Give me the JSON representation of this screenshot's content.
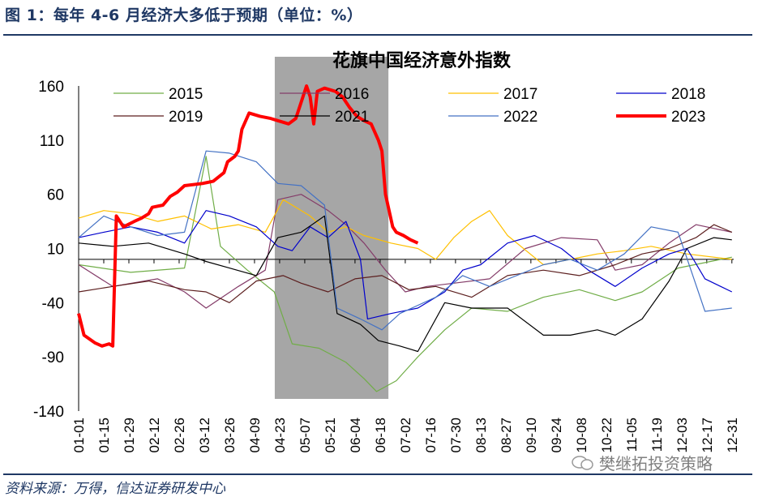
{
  "header": {
    "figure_title": "图 1：每年 4-6 月经济大多低于预期（单位：%）"
  },
  "footer": {
    "source": "资料来源：万得，信达证券研发中心",
    "watermark": "樊继拓投资策略"
  },
  "chart_data": {
    "type": "line",
    "title": "花旗中国经济意外指数",
    "xlabel": "",
    "ylabel": "",
    "ylim": [
      -140,
      160
    ],
    "yticks": [
      160,
      110,
      60,
      10,
      -40,
      -90,
      -140
    ],
    "x_tick_labels": [
      "01-01",
      "01-15",
      "01-29",
      "02-12",
      "02-26",
      "03-12",
      "03-26",
      "04-09",
      "04-23",
      "05-07",
      "05-21",
      "06-04",
      "06-18",
      "07-02",
      "07-16",
      "07-30",
      "08-13",
      "08-27",
      "09-10",
      "09-24",
      "10-08",
      "10-22",
      "11-05",
      "11-19",
      "12-03",
      "12-17",
      "12-31"
    ],
    "x_axis": "day of year",
    "highlight_band": {
      "from": "04-23",
      "to": "06-19",
      "color": "#a6a6a6"
    },
    "zero_line": 0,
    "legend": {
      "placement": "top",
      "columns": 4
    },
    "series": [
      {
        "name": "2015",
        "color": "#70ad47",
        "width": 1.2,
        "points": [
          [
            1,
            -5
          ],
          [
            30,
            -12
          ],
          [
            60,
            -8
          ],
          [
            72,
            95
          ],
          [
            80,
            12
          ],
          [
            95,
            -10
          ],
          [
            110,
            -30
          ],
          [
            120,
            -78
          ],
          [
            135,
            -82
          ],
          [
            150,
            -95
          ],
          [
            160,
            -110
          ],
          [
            167,
            -122
          ],
          [
            178,
            -112
          ],
          [
            190,
            -90
          ],
          [
            205,
            -65
          ],
          [
            220,
            -45
          ],
          [
            240,
            -48
          ],
          [
            260,
            -35
          ],
          [
            280,
            -28
          ],
          [
            300,
            -38
          ],
          [
            315,
            -30
          ],
          [
            335,
            -8
          ],
          [
            350,
            -3
          ],
          [
            365,
            2
          ]
        ]
      },
      {
        "name": "2016",
        "color": "#843c69",
        "width": 1.2,
        "points": [
          [
            1,
            -5
          ],
          [
            20,
            -25
          ],
          [
            45,
            -18
          ],
          [
            60,
            -30
          ],
          [
            72,
            -45
          ],
          [
            90,
            -25
          ],
          [
            105,
            -10
          ],
          [
            112,
            55
          ],
          [
            125,
            60
          ],
          [
            140,
            45
          ],
          [
            150,
            32
          ],
          [
            160,
            15
          ],
          [
            172,
            -10
          ],
          [
            183,
            -30
          ],
          [
            195,
            -25
          ],
          [
            210,
            -22
          ],
          [
            230,
            -18
          ],
          [
            250,
            10
          ],
          [
            270,
            20
          ],
          [
            290,
            18
          ],
          [
            300,
            -10
          ],
          [
            315,
            -5
          ],
          [
            330,
            15
          ],
          [
            345,
            32
          ],
          [
            365,
            25
          ]
        ]
      },
      {
        "name": "2017",
        "color": "#ffc000",
        "width": 1.2,
        "points": [
          [
            1,
            38
          ],
          [
            15,
            45
          ],
          [
            30,
            42
          ],
          [
            45,
            35
          ],
          [
            60,
            40
          ],
          [
            75,
            28
          ],
          [
            90,
            32
          ],
          [
            105,
            25
          ],
          [
            115,
            55
          ],
          [
            130,
            40
          ],
          [
            140,
            25
          ],
          [
            150,
            30
          ],
          [
            160,
            22
          ],
          [
            175,
            15
          ],
          [
            190,
            10
          ],
          [
            200,
            0
          ],
          [
            210,
            20
          ],
          [
            220,
            35
          ],
          [
            230,
            45
          ],
          [
            240,
            22
          ],
          [
            260,
            -5
          ],
          [
            275,
            0
          ],
          [
            290,
            5
          ],
          [
            305,
            8
          ],
          [
            320,
            12
          ],
          [
            340,
            5
          ],
          [
            365,
            0
          ]
        ]
      },
      {
        "name": "2018",
        "color": "#0000cc",
        "width": 1.2,
        "points": [
          [
            1,
            20
          ],
          [
            15,
            25
          ],
          [
            30,
            30
          ],
          [
            45,
            25
          ],
          [
            60,
            15
          ],
          [
            72,
            45
          ],
          [
            85,
            40
          ],
          [
            100,
            30
          ],
          [
            112,
            12
          ],
          [
            120,
            8
          ],
          [
            130,
            30
          ],
          [
            140,
            20
          ],
          [
            150,
            35
          ],
          [
            158,
            0
          ],
          [
            162,
            -55
          ],
          [
            175,
            -50
          ],
          [
            190,
            -45
          ],
          [
            205,
            -30
          ],
          [
            215,
            -10
          ],
          [
            225,
            -5
          ],
          [
            240,
            15
          ],
          [
            255,
            22
          ],
          [
            270,
            10
          ],
          [
            285,
            -10
          ],
          [
            300,
            -25
          ],
          [
            315,
            -8
          ],
          [
            330,
            5
          ],
          [
            340,
            10
          ],
          [
            350,
            -18
          ],
          [
            365,
            -30
          ]
        ]
      },
      {
        "name": "2019",
        "color": "#5c1f1f",
        "width": 1.2,
        "points": [
          [
            1,
            -30
          ],
          [
            20,
            -25
          ],
          [
            40,
            -20
          ],
          [
            60,
            -28
          ],
          [
            72,
            -30
          ],
          [
            85,
            -40
          ],
          [
            100,
            -20
          ],
          [
            115,
            -15
          ],
          [
            125,
            -22
          ],
          [
            140,
            -30
          ],
          [
            155,
            -18
          ],
          [
            170,
            -15
          ],
          [
            185,
            -28
          ],
          [
            200,
            -25
          ],
          [
            220,
            -35
          ],
          [
            240,
            -15
          ],
          [
            260,
            -10
          ],
          [
            280,
            -15
          ],
          [
            300,
            -5
          ],
          [
            315,
            5
          ],
          [
            330,
            10
          ],
          [
            345,
            20
          ],
          [
            355,
            32
          ],
          [
            365,
            25
          ]
        ]
      },
      {
        "name": "2021",
        "color": "#000000",
        "width": 1.2,
        "points": [
          [
            1,
            15
          ],
          [
            20,
            12
          ],
          [
            40,
            15
          ],
          [
            60,
            5
          ],
          [
            72,
            -2
          ],
          [
            85,
            -8
          ],
          [
            100,
            -15
          ],
          [
            112,
            20
          ],
          [
            125,
            25
          ],
          [
            138,
            40
          ],
          [
            145,
            -50
          ],
          [
            158,
            -60
          ],
          [
            168,
            -75
          ],
          [
            180,
            -80
          ],
          [
            190,
            -85
          ],
          [
            205,
            -40
          ],
          [
            220,
            -45
          ],
          [
            240,
            -45
          ],
          [
            260,
            -70
          ],
          [
            275,
            -70
          ],
          [
            290,
            -65
          ],
          [
            300,
            -70
          ],
          [
            315,
            -55
          ],
          [
            330,
            -20
          ],
          [
            340,
            10
          ],
          [
            355,
            20
          ],
          [
            365,
            18
          ]
        ]
      },
      {
        "name": "2022",
        "color": "#4472c4",
        "width": 1.2,
        "points": [
          [
            1,
            20
          ],
          [
            15,
            40
          ],
          [
            30,
            30
          ],
          [
            45,
            22
          ],
          [
            60,
            25
          ],
          [
            72,
            100
          ],
          [
            85,
            98
          ],
          [
            100,
            90
          ],
          [
            112,
            70
          ],
          [
            125,
            68
          ],
          [
            138,
            50
          ],
          [
            145,
            -45
          ],
          [
            158,
            -55
          ],
          [
            170,
            -65
          ],
          [
            180,
            -50
          ],
          [
            200,
            -35
          ],
          [
            215,
            -15
          ],
          [
            230,
            -25
          ],
          [
            245,
            -15
          ],
          [
            260,
            -5
          ],
          [
            275,
            0
          ],
          [
            290,
            -10
          ],
          [
            305,
            5
          ],
          [
            320,
            30
          ],
          [
            335,
            25
          ],
          [
            350,
            -48
          ],
          [
            365,
            -45
          ]
        ]
      },
      {
        "name": "2023",
        "color": "#ff0000",
        "width": 4,
        "points": [
          [
            1,
            -50
          ],
          [
            4,
            -70
          ],
          [
            10,
            -77
          ],
          [
            14,
            -80
          ],
          [
            18,
            -78
          ],
          [
            20,
            -80
          ],
          [
            22,
            40
          ],
          [
            26,
            30
          ],
          [
            32,
            35
          ],
          [
            36,
            38
          ],
          [
            40,
            42
          ],
          [
            42,
            48
          ],
          [
            48,
            50
          ],
          [
            52,
            58
          ],
          [
            56,
            62
          ],
          [
            60,
            68
          ],
          [
            70,
            70
          ],
          [
            76,
            72
          ],
          [
            82,
            80
          ],
          [
            84,
            90
          ],
          [
            88,
            95
          ],
          [
            90,
            100
          ],
          [
            92,
            120
          ],
          [
            96,
            135
          ],
          [
            102,
            132
          ],
          [
            108,
            130
          ],
          [
            112,
            128
          ],
          [
            118,
            125
          ],
          [
            122,
            130
          ],
          [
            126,
            150
          ],
          [
            128,
            160
          ],
          [
            130,
            150
          ],
          [
            132,
            125
          ],
          [
            134,
            155
          ],
          [
            138,
            158
          ],
          [
            144,
            155
          ],
          [
            148,
            150
          ],
          [
            152,
            140
          ],
          [
            156,
            132
          ],
          [
            160,
            128
          ],
          [
            164,
            125
          ],
          [
            168,
            110
          ],
          [
            170,
            100
          ],
          [
            172,
            60
          ],
          [
            176,
            30
          ],
          [
            178,
            25
          ],
          [
            182,
            22
          ],
          [
            186,
            18
          ],
          [
            190,
            15
          ]
        ]
      }
    ]
  }
}
